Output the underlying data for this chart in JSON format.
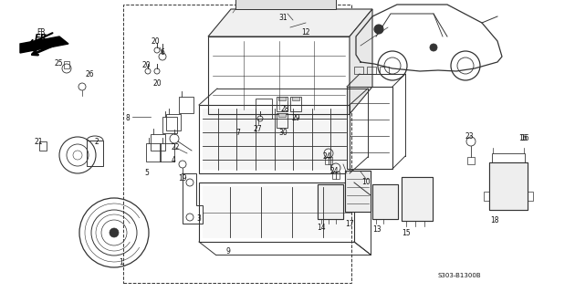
{
  "part_number": "S303-B1300B",
  "bg_color": "#ffffff",
  "line_color": "#333333",
  "fig_width": 6.3,
  "fig_height": 3.2,
  "dpi": 100
}
